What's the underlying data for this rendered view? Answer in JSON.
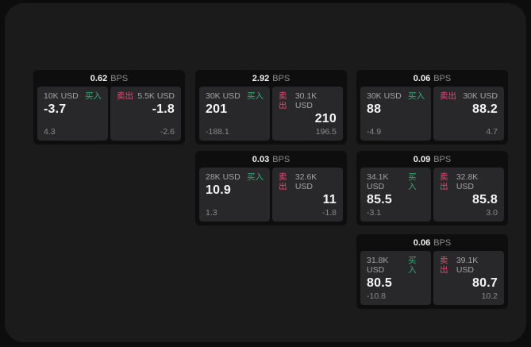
{
  "labels": {
    "bps_unit": "BPS",
    "buy": "买入",
    "sell": "卖出"
  },
  "colors": {
    "page_background": "#0d0d0d",
    "window_background": "#1b1b1c",
    "card_background": "#0e0e0f",
    "panel_background": "#28282a",
    "buy_accent": "#38a674",
    "sell_accent": "#da4f71"
  },
  "cards": [
    {
      "bps": "0.62",
      "buy": {
        "amount": "10K USD",
        "price": "-3.7",
        "sub": "4.3"
      },
      "sell": {
        "amount": "5.5K USD",
        "price": "-1.8",
        "sub": "-2.6"
      }
    },
    {
      "bps": "2.92",
      "buy": {
        "amount": "30K USD",
        "price": "201",
        "sub": "-188.1"
      },
      "sell": {
        "amount": "30.1K USD",
        "price": "210",
        "sub": "196.5"
      }
    },
    {
      "bps": "0.06",
      "buy": {
        "amount": "30K USD",
        "price": "88",
        "sub": "-4.9"
      },
      "sell": {
        "amount": "30K USD",
        "price": "88.2",
        "sub": "4.7"
      }
    },
    {
      "bps": "0.03",
      "buy": {
        "amount": "28K USD",
        "price": "10.9",
        "sub": "1.3"
      },
      "sell": {
        "amount": "32.6K USD",
        "price": "11",
        "sub": "-1.8"
      }
    },
    {
      "bps": "0.09",
      "buy": {
        "amount": "34.1K USD",
        "price": "85.5",
        "sub": "-3.1"
      },
      "sell": {
        "amount": "32.8K USD",
        "price": "85.8",
        "sub": "3.0"
      }
    },
    {
      "bps": "0.06",
      "buy": {
        "amount": "31.8K USD",
        "price": "80.5",
        "sub": "-10.8"
      },
      "sell": {
        "amount": "39.1K USD",
        "price": "80.7",
        "sub": "10.2"
      }
    }
  ]
}
